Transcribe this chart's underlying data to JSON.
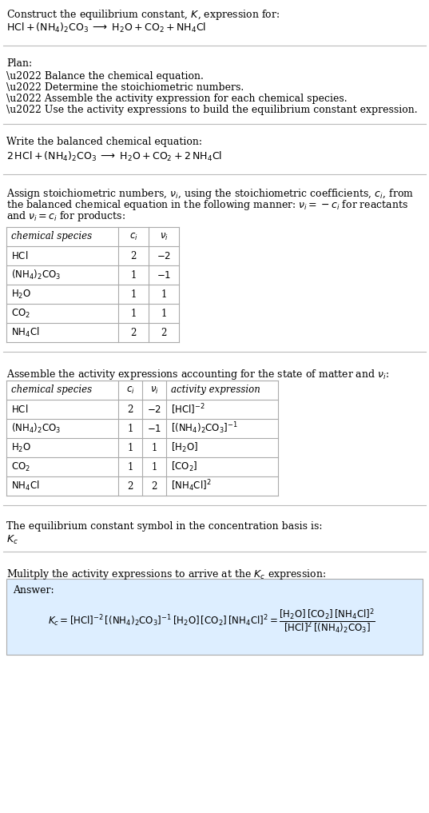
{
  "bg_color": "#ffffff",
  "answer_box_color": "#ddeeff",
  "font_size": 9.0,
  "sections": {
    "title1": "Construct the equilibrium constant, $K$, expression for:",
    "title2": "$\\mathrm{HCl} + \\mathrm{(NH_4)_2CO_3} \\;\\longrightarrow\\; \\mathrm{H_2O} + \\mathrm{CO_2} + \\mathrm{NH_4Cl}$",
    "plan_header": "Plan:",
    "plan_bullets": [
      "\\u2022 Balance the chemical equation.",
      "\\u2022 Determine the stoichiometric numbers.",
      "\\u2022 Assemble the activity expression for each chemical species.",
      "\\u2022 Use the activity expressions to build the equilibrium constant expression."
    ],
    "balanced_header": "Write the balanced chemical equation:",
    "balanced_eq": "$2\\,\\mathrm{HCl} + \\mathrm{(NH_4)_2CO_3} \\;\\longrightarrow\\; \\mathrm{H_2O} + \\mathrm{CO_2} + 2\\,\\mathrm{NH_4Cl}$",
    "stoich_lines": [
      "Assign stoichiometric numbers, $\\nu_i$, using the stoichiometric coefficients, $c_i$, from",
      "the balanced chemical equation in the following manner: $\\nu_i = -c_i$ for reactants",
      "and $\\nu_i = c_i$ for products:"
    ],
    "table1_headers": [
      "chemical species",
      "$c_i$",
      "$\\nu_i$"
    ],
    "table1_rows": [
      [
        "$\\mathrm{HCl}$",
        "2",
        "$-2$"
      ],
      [
        "$\\mathrm{(NH_4)_2CO_3}$",
        "1",
        "$-1$"
      ],
      [
        "$\\mathrm{H_2O}$",
        "1",
        "1"
      ],
      [
        "$\\mathrm{CO_2}$",
        "1",
        "1"
      ],
      [
        "$\\mathrm{NH_4Cl}$",
        "2",
        "2"
      ]
    ],
    "activity_header": "Assemble the activity expressions accounting for the state of matter and $\\nu_i$:",
    "table2_headers": [
      "chemical species",
      "$c_i$",
      "$\\nu_i$",
      "activity expression"
    ],
    "table2_rows": [
      [
        "$\\mathrm{HCl}$",
        "2",
        "$-2$",
        "$[\\mathrm{HCl}]^{-2}$"
      ],
      [
        "$\\mathrm{(NH_4)_2CO_3}$",
        "1",
        "$-1$",
        "$[(\\mathrm{NH_4})_2\\mathrm{CO_3}]^{-1}$"
      ],
      [
        "$\\mathrm{H_2O}$",
        "1",
        "1",
        "$[\\mathrm{H_2O}]$"
      ],
      [
        "$\\mathrm{CO_2}$",
        "1",
        "1",
        "$[\\mathrm{CO_2}]$"
      ],
      [
        "$\\mathrm{NH_4Cl}$",
        "2",
        "2",
        "$[\\mathrm{NH_4Cl}]^2$"
      ]
    ],
    "kc_header": "The equilibrium constant symbol in the concentration basis is:",
    "kc_symbol": "$K_c$",
    "multiply_header": "Mulitply the activity expressions to arrive at the $K_c$ expression:",
    "answer_label": "Answer:",
    "answer_eq_left": "$K_c = [\\mathrm{HCl}]^{-2}\\,[(\\mathrm{NH_4})_2\\mathrm{CO_3}]^{-1}\\,[\\mathrm{H_2O}]\\,[\\mathrm{CO_2}]\\,[\\mathrm{NH_4Cl}]^2 = \\dfrac{[\\mathrm{H_2O}]\\,[\\mathrm{CO_2}]\\,[\\mathrm{NH_4Cl}]^2}{[\\mathrm{HCl}]^2\\,[(\\mathrm{NH_4})_2\\mathrm{CO_3}]}$"
  }
}
